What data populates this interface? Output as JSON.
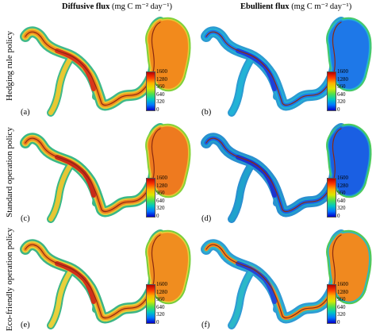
{
  "columns": [
    {
      "bold": "Diffusive flux",
      "units": "(mg C m⁻² day⁻¹)"
    },
    {
      "bold": "Ebullient flux",
      "units": "(mg C m⁻² day⁻¹)"
    }
  ],
  "rows": [
    "Hedging rule policy",
    "Standard operation policy",
    "Eco-friendly operation policy"
  ],
  "panels": [
    {
      "label": "(a)",
      "flux": "diffusive",
      "policy": "hedging",
      "palette": [
        "#d9361c",
        "#f28a1c",
        "#e8c833",
        "#7fd13b",
        "#3fb98a"
      ]
    },
    {
      "label": "(b)",
      "flux": "ebullient",
      "policy": "hedging",
      "palette": [
        "#1f3fd9",
        "#1e78e8",
        "#22b3d6",
        "#46c96a",
        "#2c9bd2"
      ]
    },
    {
      "label": "(c)",
      "flux": "diffusive",
      "policy": "standard",
      "palette": [
        "#c92a1a",
        "#ee7a1f",
        "#e6c634",
        "#86d23a",
        "#38b887"
      ]
    },
    {
      "label": "(d)",
      "flux": "ebullient",
      "policy": "standard",
      "palette": [
        "#1d34cf",
        "#1a5fe3",
        "#1fa2cc",
        "#4ccb5d",
        "#2a8fd0"
      ]
    },
    {
      "label": "(e)",
      "flux": "diffusive",
      "policy": "eco-friendly",
      "palette": [
        "#d0301b",
        "#f08d1f",
        "#e8d03b",
        "#78ce3d",
        "#3db585"
      ]
    },
    {
      "label": "(f)",
      "flux": "ebullient",
      "policy": "eco-friendly",
      "palette": [
        "#2447d6",
        "#f0891f",
        "#2bb8c8",
        "#52c956",
        "#2f9bd4"
      ]
    }
  ],
  "colorbar": {
    "ticks": [
      "1600",
      "1280",
      "960",
      "640",
      "320",
      "0"
    ],
    "colors": [
      "#b50000",
      "#ff3a00",
      "#ffb000",
      "#d8e800",
      "#4ee04e",
      "#00c8c0",
      "#0078ff",
      "#0000c8"
    ]
  }
}
